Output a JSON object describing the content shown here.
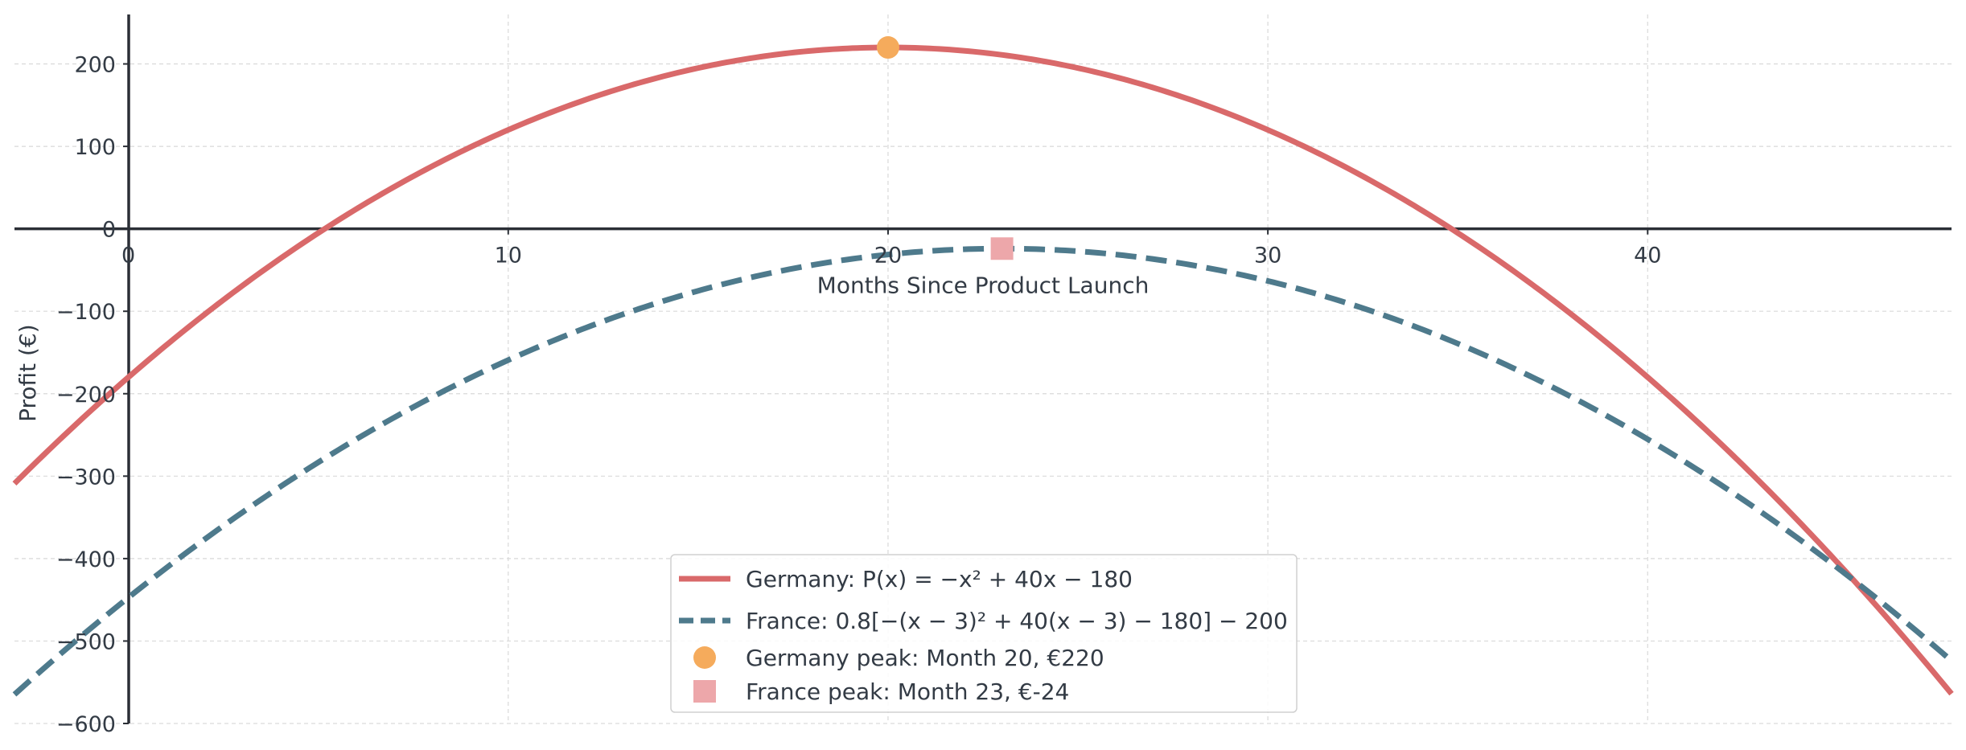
{
  "chart_data": {
    "type": "line",
    "xlabel": "Months Since Product Launch",
    "ylabel": "Profit (€)",
    "xlim": [
      -3,
      48
    ],
    "ylim": [
      -600,
      260
    ],
    "x_ticks": [
      0,
      10,
      20,
      30,
      40
    ],
    "y_ticks": [
      -600,
      -500,
      -400,
      -300,
      -200,
      -100,
      0,
      100,
      200
    ],
    "y_tick_labels": [
      "−600",
      "−500",
      "−400",
      "−300",
      "−200",
      "−100",
      "0",
      "100",
      "200"
    ],
    "grid": true,
    "legend_position": "lower-center",
    "series": [
      {
        "name": "Germany: P(x) = −x² + 40x − 180",
        "style": "solid",
        "color": "#d9696a",
        "function": "-x^2 + 40x - 180"
      },
      {
        "name": "France: 0.8[−(x − 3)² + 40(x − 3) − 180] − 200",
        "style": "dashed",
        "color": "#4e7a8c",
        "function": "0.8*(-(x-3)^2 + 40*(x-3) - 180) - 200"
      }
    ],
    "points": [
      {
        "name": "Germany peak: Month 20, €220",
        "x": 20,
        "y": 220,
        "marker": "circle",
        "color": "#f5ab5c"
      },
      {
        "name": "France peak: Month 23, €-24",
        "x": 23,
        "y": -24,
        "marker": "square",
        "color": "#eda7aa"
      }
    ]
  }
}
